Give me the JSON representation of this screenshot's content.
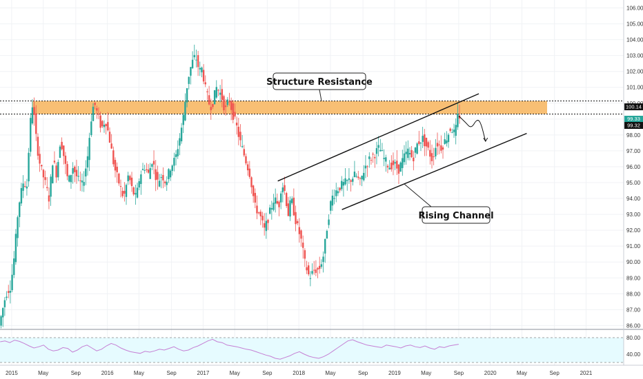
{
  "chart_data": [
    {
      "type": "candlestick",
      "title": "",
      "xlabel": "",
      "ylabel": "",
      "ylim": [
        85.8,
        106.5
      ],
      "y_ticks": [
        "86.00",
        "87.00",
        "88.00",
        "89.00",
        "90.00",
        "91.00",
        "92.00",
        "93.00",
        "94.00",
        "95.00",
        "96.00",
        "97.00",
        "98.00",
        "99.00",
        "100.00",
        "101.00",
        "102.00",
        "103.00",
        "104.00",
        "105.00",
        "106.00"
      ],
      "x_ticks": [
        {
          "label": "2015",
          "t": 2015.0
        },
        {
          "label": "May",
          "t": 2015.33
        },
        {
          "label": "Sep",
          "t": 2015.67
        },
        {
          "label": "2016",
          "t": 2016.0
        },
        {
          "label": "May",
          "t": 2016.33
        },
        {
          "label": "Sep",
          "t": 2016.67
        },
        {
          "label": "2017",
          "t": 2017.0
        },
        {
          "label": "May",
          "t": 2017.33
        },
        {
          "label": "Sep",
          "t": 2017.67
        },
        {
          "label": "2018",
          "t": 2018.0
        },
        {
          "label": "May",
          "t": 2018.33
        },
        {
          "label": "Sep",
          "t": 2018.67
        },
        {
          "label": "2019",
          "t": 2019.0
        },
        {
          "label": "May",
          "t": 2019.33
        },
        {
          "label": "Sep",
          "t": 2019.67
        },
        {
          "label": "2020",
          "t": 2020.0
        },
        {
          "label": "May",
          "t": 2020.33
        },
        {
          "label": "Sep",
          "t": 2020.67
        },
        {
          "label": "2021",
          "t": 2021.0
        }
      ],
      "price_path": [
        [
          2014.88,
          86.0
        ],
        [
          2014.95,
          88.0
        ],
        [
          2015.0,
          88.5
        ],
        [
          2015.04,
          90.5
        ],
        [
          2015.08,
          93.5
        ],
        [
          2015.13,
          95.0
        ],
        [
          2015.17,
          94.8
        ],
        [
          2015.2,
          98.5
        ],
        [
          2015.23,
          100.1
        ],
        [
          2015.27,
          97.5
        ],
        [
          2015.31,
          96.0
        ],
        [
          2015.35,
          95.2
        ],
        [
          2015.4,
          94.0
        ],
        [
          2015.44,
          96.5
        ],
        [
          2015.48,
          95.5
        ],
        [
          2015.52,
          97.8
        ],
        [
          2015.56,
          96.5
        ],
        [
          2015.6,
          95.0
        ],
        [
          2015.65,
          96.0
        ],
        [
          2015.7,
          95.2
        ],
        [
          2015.75,
          94.8
        ],
        [
          2015.8,
          96.5
        ],
        [
          2015.84,
          99.0
        ],
        [
          2015.87,
          100.1
        ],
        [
          2015.91,
          99.2
        ],
        [
          2015.95,
          98.4
        ],
        [
          2015.99,
          99.0
        ],
        [
          2016.04,
          97.5
        ],
        [
          2016.08,
          96.0
        ],
        [
          2016.13,
          95.0
        ],
        [
          2016.18,
          94.0
        ],
        [
          2016.23,
          95.5
        ],
        [
          2016.27,
          94.5
        ],
        [
          2016.31,
          94.0
        ],
        [
          2016.35,
          95.5
        ],
        [
          2016.4,
          96.0
        ],
        [
          2016.44,
          95.5
        ],
        [
          2016.48,
          96.5
        ],
        [
          2016.53,
          95.0
        ],
        [
          2016.58,
          95.5
        ],
        [
          2016.62,
          95.0
        ],
        [
          2016.67,
          96.0
        ],
        [
          2016.72,
          96.5
        ],
        [
          2016.77,
          98.0
        ],
        [
          2016.8,
          99.0
        ],
        [
          2016.85,
          101.5
        ],
        [
          2016.89,
          102.5
        ],
        [
          2016.93,
          103.0
        ],
        [
          2016.97,
          102.0
        ],
        [
          2017.0,
          102.2
        ],
        [
          2017.03,
          101.0
        ],
        [
          2017.07,
          100.0
        ],
        [
          2017.1,
          99.8
        ],
        [
          2017.15,
          101.0
        ],
        [
          2017.2,
          100.5
        ],
        [
          2017.24,
          99.5
        ],
        [
          2017.28,
          100.3
        ],
        [
          2017.32,
          99.3
        ],
        [
          2017.36,
          98.5
        ],
        [
          2017.4,
          97.5
        ],
        [
          2017.45,
          96.5
        ],
        [
          2017.5,
          95.5
        ],
        [
          2017.55,
          93.5
        ],
        [
          2017.6,
          93.0
        ],
        [
          2017.65,
          92.0
        ],
        [
          2017.7,
          93.0
        ],
        [
          2017.75,
          94.0
        ],
        [
          2017.8,
          93.5
        ],
        [
          2017.83,
          95.0
        ],
        [
          2017.86,
          94.5
        ],
        [
          2017.9,
          93.0
        ],
        [
          2017.93,
          94.0
        ],
        [
          2017.98,
          92.5
        ],
        [
          2018.03,
          91.5
        ],
        [
          2018.07,
          90.0
        ],
        [
          2018.12,
          89.0
        ],
        [
          2018.17,
          89.5
        ],
        [
          2018.22,
          89.5
        ],
        [
          2018.27,
          90.5
        ],
        [
          2018.31,
          92.5
        ],
        [
          2018.35,
          94.0
        ],
        [
          2018.4,
          94.5
        ],
        [
          2018.45,
          94.8
        ],
        [
          2018.5,
          95.0
        ],
        [
          2018.55,
          95.2
        ],
        [
          2018.6,
          95.5
        ],
        [
          2018.65,
          95.0
        ],
        [
          2018.7,
          96.0
        ],
        [
          2018.75,
          96.5
        ],
        [
          2018.8,
          96.8
        ],
        [
          2018.85,
          97.2
        ],
        [
          2018.9,
          96.5
        ],
        [
          2018.95,
          96.0
        ],
        [
          2019.0,
          96.2
        ],
        [
          2019.05,
          95.8
        ],
        [
          2019.1,
          96.5
        ],
        [
          2019.15,
          97.0
        ],
        [
          2019.2,
          96.5
        ],
        [
          2019.25,
          97.5
        ],
        [
          2019.3,
          97.8
        ],
        [
          2019.35,
          97.2
        ],
        [
          2019.4,
          96.5
        ],
        [
          2019.45,
          97.5
        ],
        [
          2019.5,
          97.2
        ],
        [
          2019.55,
          97.8
        ],
        [
          2019.6,
          98.5
        ],
        [
          2019.64,
          98.0
        ],
        [
          2019.67,
          99.2
        ]
      ],
      "resistance_zone": {
        "label": "Structure Resistance",
        "upper": 100.14,
        "lower": 99.32
      },
      "level_labels": [
        "100.14",
        "99.33",
        "99.32"
      ],
      "channel": {
        "label": "Rising Channel",
        "upper": [
          [
            2017.78,
            95.1
          ],
          [
            2019.88,
            100.6
          ]
        ],
        "lower": [
          [
            2018.45,
            93.3
          ],
          [
            2020.38,
            98.1
          ]
        ]
      },
      "projection": [
        [
          2019.67,
          99.2
        ],
        [
          2019.74,
          98.8
        ],
        [
          2019.8,
          98.4
        ],
        [
          2019.86,
          99.0
        ],
        [
          2019.9,
          98.8
        ],
        [
          2019.95,
          97.6
        ]
      ],
      "rsi": {
        "levels": [
          80,
          40
        ],
        "level_labels": [
          "80.00",
          "40.00"
        ],
        "values": [
          70,
          72,
          68,
          74,
          71,
          66,
          60,
          55,
          58,
          62,
          52,
          48,
          50,
          56,
          54,
          45,
          50,
          58,
          62,
          55,
          48,
          52,
          60,
          66,
          62,
          55,
          50,
          46,
          44,
          42,
          47,
          45,
          48,
          52,
          50,
          54,
          58,
          52,
          48,
          50,
          56,
          60,
          66,
          72,
          76,
          70,
          68,
          62,
          60,
          58,
          55,
          52,
          50,
          46,
          42,
          38,
          35,
          30,
          28,
          32,
          36,
          42,
          46,
          40,
          35,
          32,
          30,
          34,
          40,
          48,
          56,
          64,
          72,
          75,
          70,
          66,
          62,
          60,
          58,
          56,
          62,
          60,
          58,
          55,
          60,
          62,
          58,
          56,
          60,
          55,
          52,
          58,
          56,
          60,
          62,
          64
        ]
      }
    }
  ]
}
